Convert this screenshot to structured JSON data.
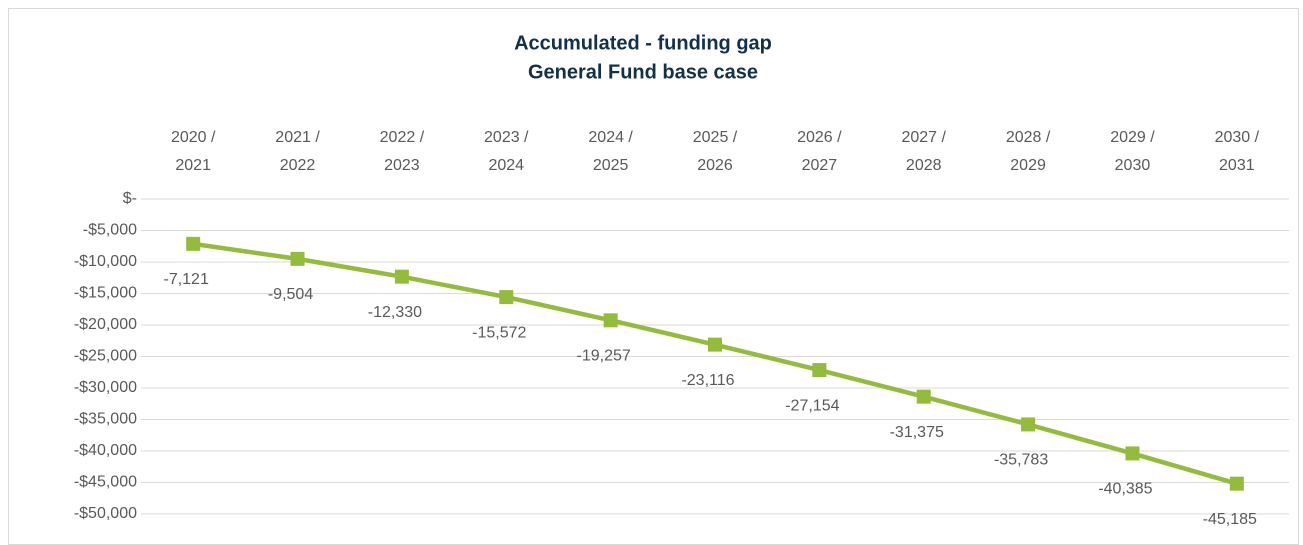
{
  "chart_data": {
    "type": "line",
    "title": "Accumulated - funding gap",
    "subtitle": "General Fund base case",
    "categories": [
      "2020 / 2021",
      "2021 / 2022",
      "2022 / 2023",
      "2023 / 2024",
      "2024 / 2025",
      "2025 / 2026",
      "2026 / 2027",
      "2027 / 2028",
      "2028 / 2029",
      "2029 / 2030",
      "2030 / 2031"
    ],
    "series": [
      {
        "name": "Accumulated funding gap",
        "color": "#94bc3c",
        "values": [
          -7121,
          -9504,
          -12330,
          -15572,
          -19257,
          -23116,
          -27154,
          -31375,
          -35783,
          -40385,
          -45185
        ],
        "value_labels": [
          "-7,121",
          "-9,504",
          "-12,330",
          "-15,572",
          "-19,257",
          "-23,116",
          "-27,154",
          "-31,375",
          "-35,783",
          "-40,385",
          "-45,185"
        ]
      }
    ],
    "ylim": [
      -50000,
      0
    ],
    "yticks": [
      {
        "value": 0,
        "label": "$-"
      },
      {
        "value": -5000,
        "label": "-$5,000"
      },
      {
        "value": -10000,
        "label": "-$10,000"
      },
      {
        "value": -15000,
        "label": "-$15,000"
      },
      {
        "value": -20000,
        "label": "-$20,000"
      },
      {
        "value": -25000,
        "label": "-$25,000"
      },
      {
        "value": -30000,
        "label": "-$30,000"
      },
      {
        "value": -35000,
        "label": "-$35,000"
      },
      {
        "value": -40000,
        "label": "-$40,000"
      },
      {
        "value": -45000,
        "label": "-$45,000"
      },
      {
        "value": -50000,
        "label": "-$50,000"
      }
    ],
    "grid": true
  }
}
